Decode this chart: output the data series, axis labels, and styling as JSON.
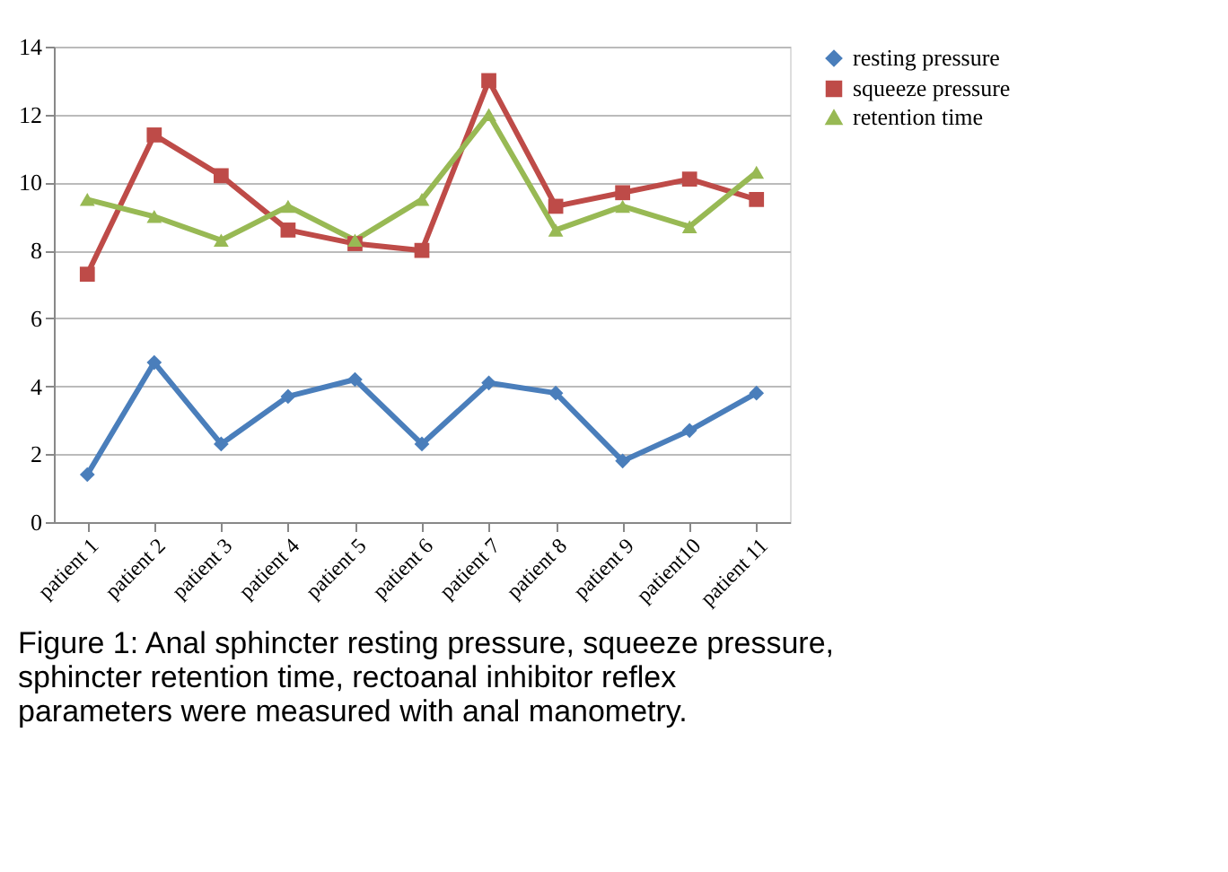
{
  "chart_data": {
    "type": "line",
    "categories": [
      "patient 1",
      "patient 2",
      "patient 3",
      "patient 4",
      "patient 5",
      "patient 6",
      "patient 7",
      "patient 8",
      "patient 9",
      "patient10",
      "patient 11"
    ],
    "series": [
      {
        "name": "resting pressure",
        "color": "#4a7ebb",
        "marker": "diamond",
        "values": [
          1.4,
          4.7,
          2.3,
          3.7,
          4.2,
          2.3,
          4.1,
          3.8,
          1.8,
          2.7,
          3.8
        ]
      },
      {
        "name": "squeeze pressure",
        "color": "#be4b48",
        "marker": "square",
        "values": [
          7.3,
          11.4,
          10.2,
          8.6,
          8.2,
          8.0,
          13.0,
          9.3,
          9.7,
          10.1,
          9.5
        ]
      },
      {
        "name": "retention time",
        "color": "#98b954",
        "marker": "triangle",
        "values": [
          9.5,
          9.0,
          8.3,
          9.3,
          8.3,
          9.5,
          12.0,
          8.6,
          9.3,
          8.7,
          10.3
        ]
      }
    ],
    "ylim": [
      0,
      14
    ],
    "yticks": [
      0,
      2,
      4,
      6,
      8,
      10,
      12,
      14
    ],
    "grid": "y",
    "legend": "right",
    "line_style": "solid",
    "annotations": [
      "Figure 1: Anal sphincter resting pressure, squeeze pressure, sphincter retention time, rectoanal inhibitor reflex parameters were measured with anal manometry."
    ]
  }
}
